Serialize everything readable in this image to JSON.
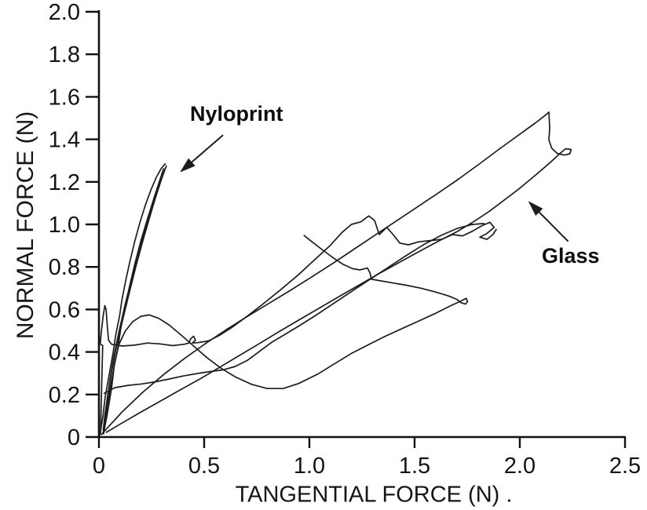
{
  "figure": {
    "background": "#ffffff",
    "ink": "#1c1c1c",
    "axis_color": "#111111"
  },
  "chart_data": {
    "type": "line",
    "title": "",
    "xlabel": "TANGENTIAL FORCE (N) .",
    "ylabel": "NORMAL FORCE (N)",
    "xlim": [
      0,
      2.5
    ],
    "ylim": [
      0,
      2.0
    ],
    "grid": false,
    "legend_position": "none",
    "x_ticks": [
      0,
      0.5,
      1.0,
      1.5,
      2.0,
      2.5
    ],
    "x_tick_labels": [
      "0",
      "0.5",
      "1.0",
      "1.5",
      "2.0",
      "2.5"
    ],
    "y_ticks": [
      0,
      0.2,
      0.4,
      0.6,
      0.8,
      1.0,
      1.2,
      1.4,
      1.6,
      1.8,
      2.0
    ],
    "y_tick_labels": [
      "0",
      "0.2",
      "0.4",
      "0.6",
      "0.8",
      "1.0",
      "1.2",
      "1.4",
      "1.6",
      "1.8",
      "2.0"
    ],
    "series": [
      {
        "name": "Nyloprint",
        "description": "Tight near-vertical bundle of loading/unloading traces from origin up to about (0.33, 1.28)",
        "strokes": [
          [
            [
              0.005,
              0.01
            ],
            [
              0.018,
              0.09
            ],
            [
              0.03,
              0.19
            ],
            [
              0.05,
              0.3
            ],
            [
              0.068,
              0.4
            ],
            [
              0.08,
              0.48
            ],
            [
              0.098,
              0.57
            ],
            [
              0.11,
              0.65
            ],
            [
              0.128,
              0.74
            ],
            [
              0.148,
              0.83
            ],
            [
              0.17,
              0.92
            ],
            [
              0.195,
              1.01
            ],
            [
              0.222,
              1.095
            ],
            [
              0.248,
              1.165
            ],
            [
              0.272,
              1.22
            ],
            [
              0.295,
              1.262
            ],
            [
              0.315,
              1.285
            ]
          ],
          [
            [
              0.32,
              1.275
            ],
            [
              0.298,
              1.215
            ],
            [
              0.27,
              1.13
            ],
            [
              0.24,
              1.03
            ],
            [
              0.208,
              0.92
            ],
            [
              0.175,
              0.8
            ],
            [
              0.142,
              0.67
            ],
            [
              0.11,
              0.54
            ],
            [
              0.082,
              0.42
            ],
            [
              0.06,
              0.31
            ],
            [
              0.042,
              0.2
            ],
            [
              0.028,
              0.1
            ],
            [
              0.02,
              0.03
            ]
          ],
          [
            [
              0.022,
              0.015
            ],
            [
              0.04,
              0.11
            ],
            [
              0.06,
              0.23
            ],
            [
              0.072,
              0.33
            ],
            [
              0.092,
              0.43
            ],
            [
              0.105,
              0.52
            ],
            [
              0.125,
              0.615
            ],
            [
              0.148,
              0.72
            ],
            [
              0.172,
              0.82
            ],
            [
              0.2,
              0.925
            ],
            [
              0.232,
              1.03
            ],
            [
              0.262,
              1.125
            ],
            [
              0.29,
              1.21
            ],
            [
              0.308,
              1.262
            ]
          ],
          [
            [
              0.305,
              1.255
            ],
            [
              0.28,
              1.175
            ],
            [
              0.252,
              1.085
            ],
            [
              0.222,
              0.985
            ],
            [
              0.19,
              0.875
            ],
            [
              0.158,
              0.755
            ],
            [
              0.125,
              0.625
            ],
            [
              0.095,
              0.495
            ],
            [
              0.07,
              0.375
            ],
            [
              0.052,
              0.265
            ],
            [
              0.038,
              0.16
            ],
            [
              0.03,
              0.06
            ]
          ]
        ]
      },
      {
        "name": "Glass",
        "description": "Sprawling friction loops: axis spike to 0.62, plateau near 0.44 with small curl at (0.44,0.46), big loop peaking at (2.13,1.53) with curl end near (2.2,1.33), hill over (0.22,0.57) to valley (0.8,0.23) rising to hook end (1.74,0.65), knot near (1.87,1.0)",
        "strokes": [
          [
            [
              0.008,
              0.02
            ],
            [
              0.01,
              0.12
            ],
            [
              0.013,
              0.24
            ],
            [
              0.016,
              0.36
            ],
            [
              0.018,
              0.43
            ],
            [
              0.006,
              0.438
            ],
            [
              0.012,
              0.5
            ],
            [
              0.02,
              0.57
            ],
            [
              0.028,
              0.618
            ],
            [
              0.034,
              0.6
            ],
            [
              0.04,
              0.52
            ],
            [
              0.046,
              0.455
            ],
            [
              0.06,
              0.436
            ],
            [
              0.11,
              0.428
            ],
            [
              0.17,
              0.432
            ],
            [
              0.23,
              0.442
            ],
            [
              0.29,
              0.438
            ],
            [
              0.35,
              0.43
            ],
            [
              0.405,
              0.436
            ],
            [
              0.428,
              0.442
            ],
            [
              0.436,
              0.462
            ],
            [
              0.45,
              0.474
            ],
            [
              0.459,
              0.456
            ],
            [
              0.444,
              0.442
            ],
            [
              0.47,
              0.444
            ],
            [
              0.52,
              0.452
            ],
            [
              0.572,
              0.478
            ],
            [
              0.63,
              0.514
            ],
            [
              0.7,
              0.565
            ],
            [
              0.78,
              0.626
            ],
            [
              0.87,
              0.698
            ],
            [
              0.95,
              0.765
            ],
            [
              1.03,
              0.838
            ],
            [
              1.1,
              0.902
            ],
            [
              1.155,
              0.962
            ],
            [
              1.2,
              1.0
            ],
            [
              1.245,
              1.012
            ],
            [
              1.282,
              1.04
            ],
            [
              1.31,
              1.018
            ],
            [
              1.332,
              0.952
            ],
            [
              1.368,
              0.986
            ],
            [
              1.398,
              0.952
            ],
            [
              1.43,
              0.912
            ],
            [
              1.47,
              0.904
            ],
            [
              1.52,
              0.918
            ],
            [
              1.575,
              0.924
            ],
            [
              1.63,
              0.93
            ],
            [
              1.68,
              0.952
            ],
            [
              1.728,
              0.946
            ],
            [
              1.775,
              0.968
            ],
            [
              1.82,
              0.994
            ],
            [
              1.858,
              1.01
            ],
            [
              1.878,
              0.986
            ],
            [
              1.842,
              0.956
            ],
            [
              1.81,
              0.94
            ],
            [
              1.844,
              0.93
            ],
            [
              1.872,
              0.952
            ],
            [
              1.888,
              0.976
            ]
          ],
          [
            [
              0.012,
              0.012
            ],
            [
              0.11,
              0.118
            ],
            [
              0.21,
              0.212
            ],
            [
              0.31,
              0.296
            ],
            [
              0.41,
              0.372
            ],
            [
              0.51,
              0.442
            ],
            [
              0.61,
              0.508
            ],
            [
              0.71,
              0.57
            ],
            [
              0.81,
              0.63
            ],
            [
              0.91,
              0.69
            ],
            [
              1.01,
              0.752
            ],
            [
              1.11,
              0.816
            ],
            [
              1.21,
              0.882
            ],
            [
              1.31,
              0.948
            ],
            [
              1.41,
              1.014
            ],
            [
              1.51,
              1.08
            ],
            [
              1.61,
              1.146
            ],
            [
              1.71,
              1.214
            ],
            [
              1.81,
              1.286
            ],
            [
              1.905,
              1.356
            ],
            [
              2.0,
              1.424
            ],
            [
              2.07,
              1.474
            ],
            [
              2.12,
              1.512
            ],
            [
              2.138,
              1.528
            ],
            [
              2.142,
              1.452
            ],
            [
              2.138,
              1.398
            ],
            [
              2.152,
              1.358
            ],
            [
              2.178,
              1.334
            ],
            [
              2.212,
              1.326
            ],
            [
              2.238,
              1.332
            ],
            [
              2.244,
              1.352
            ],
            [
              2.218,
              1.356
            ],
            [
              2.196,
              1.338
            ],
            [
              2.15,
              1.296
            ],
            [
              2.08,
              1.236
            ],
            [
              2.0,
              1.17
            ],
            [
              1.92,
              1.11
            ],
            [
              1.85,
              1.058
            ],
            [
              1.78,
              1.012
            ],
            [
              1.7,
              0.965
            ],
            [
              1.615,
              0.922
            ],
            [
              1.52,
              0.872
            ],
            [
              1.425,
              0.82
            ],
            [
              1.33,
              0.768
            ],
            [
              1.235,
              0.714
            ],
            [
              1.14,
              0.66
            ],
            [
              1.045,
              0.605
            ],
            [
              0.95,
              0.55
            ],
            [
              0.855,
              0.495
            ],
            [
              0.76,
              0.438
            ],
            [
              0.665,
              0.382
            ],
            [
              0.57,
              0.326
            ],
            [
              0.475,
              0.27
            ],
            [
              0.38,
              0.218
            ],
            [
              0.285,
              0.165
            ],
            [
              0.19,
              0.112
            ],
            [
              0.1,
              0.06
            ],
            [
              0.035,
              0.022
            ]
          ],
          [
            [
              0.02,
              0.015
            ],
            [
              0.035,
              0.11
            ],
            [
              0.055,
              0.235
            ],
            [
              0.075,
              0.35
            ],
            [
              0.095,
              0.435
            ],
            [
              0.125,
              0.498
            ],
            [
              0.16,
              0.542
            ],
            [
              0.2,
              0.568
            ],
            [
              0.24,
              0.574
            ],
            [
              0.285,
              0.558
            ],
            [
              0.335,
              0.526
            ],
            [
              0.39,
              0.48
            ],
            [
              0.45,
              0.428
            ],
            [
              0.515,
              0.372
            ],
            [
              0.58,
              0.324
            ],
            [
              0.65,
              0.282
            ],
            [
              0.725,
              0.248
            ],
            [
              0.8,
              0.228
            ],
            [
              0.875,
              0.228
            ],
            [
              0.95,
              0.252
            ],
            [
              1.04,
              0.296
            ],
            [
              1.125,
              0.348
            ],
            [
              1.205,
              0.396
            ],
            [
              1.285,
              0.436
            ],
            [
              1.365,
              0.476
            ],
            [
              1.445,
              0.512
            ],
            [
              1.525,
              0.548
            ],
            [
              1.6,
              0.582
            ],
            [
              1.668,
              0.616
            ],
            [
              1.72,
              0.64
            ],
            [
              1.745,
              0.652
            ],
            [
              1.752,
              0.638
            ],
            [
              1.742,
              0.625
            ],
            [
              1.72,
              0.632
            ],
            [
              1.7,
              0.648
            ],
            [
              1.66,
              0.664
            ],
            [
              1.6,
              0.682
            ],
            [
              1.53,
              0.7
            ],
            [
              1.46,
              0.714
            ],
            [
              1.39,
              0.726
            ],
            [
              1.33,
              0.736
            ],
            [
              1.295,
              0.742
            ],
            [
              1.288,
              0.772
            ],
            [
              1.276,
              0.795
            ],
            [
              1.24,
              0.786
            ],
            [
              1.205,
              0.792
            ],
            [
              1.16,
              0.812
            ],
            [
              1.11,
              0.845
            ],
            [
              1.06,
              0.882
            ],
            [
              1.01,
              0.92
            ],
            [
              0.975,
              0.948
            ]
          ],
          [
            [
              0.025,
              0.205
            ],
            [
              0.075,
              0.232
            ],
            [
              0.14,
              0.243
            ],
            [
              0.205,
              0.25
            ],
            [
              0.27,
              0.26
            ],
            [
              0.335,
              0.273
            ],
            [
              0.4,
              0.287
            ],
            [
              0.465,
              0.298
            ],
            [
              0.53,
              0.308
            ],
            [
              0.59,
              0.316
            ],
            [
              0.648,
              0.332
            ],
            [
              0.705,
              0.36
            ],
            [
              0.762,
              0.402
            ],
            [
              0.82,
              0.445
            ],
            [
              0.88,
              0.48
            ],
            [
              0.95,
              0.522
            ],
            [
              1.03,
              0.572
            ],
            [
              1.115,
              0.628
            ],
            [
              1.2,
              0.684
            ],
            [
              1.285,
              0.74
            ],
            [
              1.37,
              0.795
            ],
            [
              1.455,
              0.85
            ],
            [
              1.54,
              0.903
            ],
            [
              1.625,
              0.948
            ],
            [
              1.705,
              0.982
            ],
            [
              1.775,
              1.0
            ],
            [
              1.83,
              1.004
            ]
          ]
        ]
      }
    ],
    "annotations": [
      {
        "text": "Nyloprint",
        "arrow_tail": [
          0.59,
          1.42
        ],
        "arrow_tip": [
          0.385,
          1.245
        ]
      },
      {
        "text": "Glass",
        "arrow_tail": [
          2.23,
          0.92
        ],
        "arrow_tip": [
          2.04,
          1.11
        ]
      }
    ]
  }
}
